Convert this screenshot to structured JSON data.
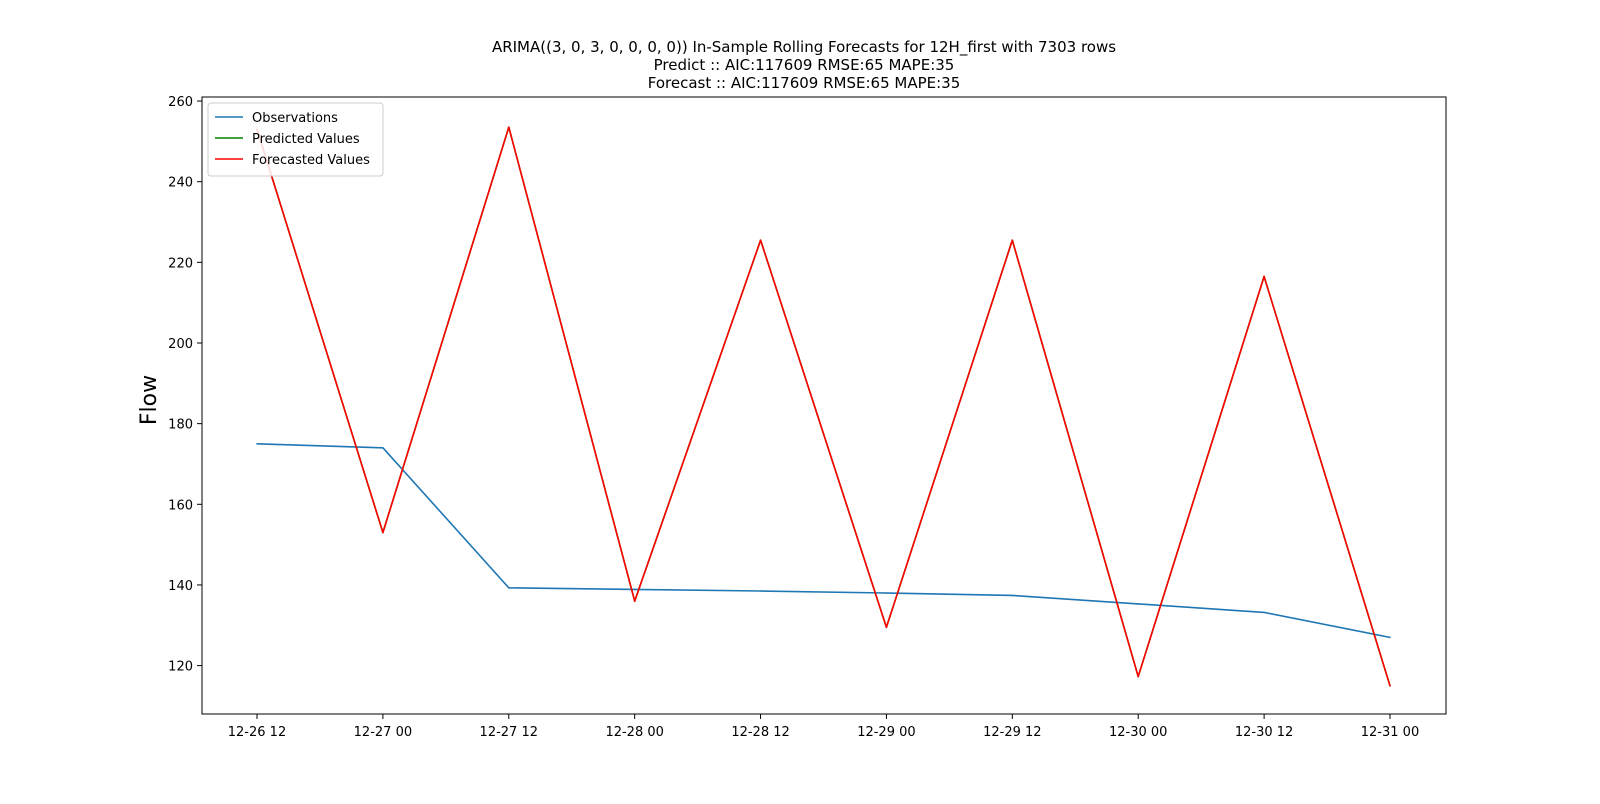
{
  "chart_data": {
    "type": "line",
    "title_lines": [
      "ARIMA((3, 0, 3, 0, 0, 0, 0)) In-Sample Rolling Forecasts for 12H_first with 7303 rows",
      "Predict :: AIC:117609 RMSE:65 MAPE:35",
      "Forecast :: AIC:117609 RMSE:65 MAPE:35"
    ],
    "xlabel": "",
    "ylabel": "Flow",
    "categories": [
      "12-26 12",
      "12-27 00",
      "12-27 12",
      "12-28 00",
      "12-28 12",
      "12-29 00",
      "12-29 12",
      "12-30 00",
      "12-30 12",
      "12-31 00"
    ],
    "ylim": [
      108,
      261
    ],
    "yticks": [
      120,
      140,
      160,
      180,
      200,
      220,
      240,
      260
    ],
    "grid": false,
    "legend_position": "top-left",
    "series": [
      {
        "name": "Observations",
        "color": "#1f77b4",
        "values": [
          175,
          174,
          139.3,
          138.9,
          138.5,
          138.0,
          137.4,
          135.3,
          133.2,
          127.0
        ]
      },
      {
        "name": "Predicted Values",
        "color": "#008000",
        "values": [
          253,
          153,
          253.5,
          136,
          225.5,
          129.5,
          225.5,
          117.3,
          216.5,
          115
        ]
      },
      {
        "name": "Forecasted Values",
        "color": "#ff0000",
        "values": [
          253,
          153,
          253.5,
          136,
          225.5,
          129.5,
          225.5,
          117.3,
          216.5,
          115
        ]
      }
    ]
  }
}
